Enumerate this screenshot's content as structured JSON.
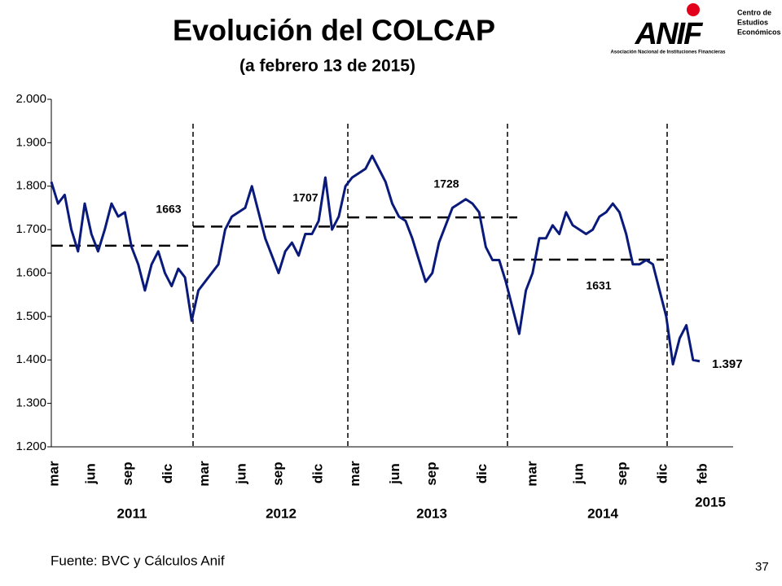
{
  "chart_data": {
    "type": "line",
    "title": "Evolución del COLCAP",
    "subtitle": "(a febrero 13 de 2015)",
    "source": "Fuente: BVC y Cálculos Anif",
    "page_number": "37",
    "logo": {
      "name": "ANIF",
      "unit": [
        "Centro de",
        "Estudios",
        "Económicos"
      ],
      "tagline": "Asociación Nacional de Instituciones Financieras"
    },
    "xlim": [
      0,
      204
    ],
    "xticks": [
      {
        "value": 1,
        "label": "mar"
      },
      {
        "value": 12,
        "label": "jun"
      },
      {
        "value": 23,
        "label": "sep"
      },
      {
        "value": 35,
        "label": "dic"
      },
      {
        "value": 46,
        "label": "mar"
      },
      {
        "value": 57,
        "label": "jun"
      },
      {
        "value": 68,
        "label": "sep"
      },
      {
        "value": 80,
        "label": "dic"
      },
      {
        "value": 91,
        "label": "mar"
      },
      {
        "value": 103,
        "label": "jun"
      },
      {
        "value": 114,
        "label": "sep"
      },
      {
        "value": 129,
        "label": "dic"
      },
      {
        "value": 144,
        "label": "mar"
      },
      {
        "value": 158,
        "label": "jun"
      },
      {
        "value": 171,
        "label": "sep"
      },
      {
        "value": 183,
        "label": "dic"
      },
      {
        "value": 195,
        "label": "feb"
      }
    ],
    "years": [
      "2011",
      "2012",
      "2013",
      "2014",
      "2015"
    ],
    "ylim": [
      1200,
      2000
    ],
    "yticks": [
      {
        "value": 1200,
        "label": "1.200"
      },
      {
        "value": 1300,
        "label": "1.300"
      },
      {
        "value": 1400,
        "label": "1.400"
      },
      {
        "value": 1500,
        "label": "1.500"
      },
      {
        "value": 1600,
        "label": "1.600"
      },
      {
        "value": 1700,
        "label": "1.700"
      },
      {
        "value": 1800,
        "label": "1.800"
      },
      {
        "value": 1900,
        "label": "1.900"
      },
      {
        "value": 2000,
        "label": "2.000"
      }
    ],
    "x": [
      0,
      2,
      4,
      6,
      8,
      10,
      12,
      14,
      16,
      18,
      20,
      22,
      24,
      26,
      28,
      30,
      32,
      34,
      36,
      38,
      40,
      42,
      44,
      46,
      48,
      50,
      52,
      54,
      56,
      58,
      60,
      62,
      64,
      66,
      68,
      70,
      72,
      74,
      76,
      78,
      80,
      82,
      84,
      86,
      88,
      90,
      92,
      94,
      96,
      98,
      100,
      102,
      104,
      106,
      108,
      110,
      112,
      114,
      116,
      118,
      120,
      122,
      124,
      126,
      128,
      130,
      132,
      134,
      136,
      138,
      140,
      142,
      144,
      146,
      148,
      150,
      152,
      154,
      156,
      158,
      160,
      162,
      164,
      166,
      168,
      170,
      172,
      174,
      176,
      178,
      180,
      182,
      184,
      186,
      188,
      190,
      192,
      194
    ],
    "series": [
      {
        "color": "#0a1a7a",
        "values": [
          1810,
          1760,
          1780,
          1700,
          1650,
          1760,
          1690,
          1650,
          1700,
          1760,
          1730,
          1740,
          1660,
          1620,
          1560,
          1620,
          1650,
          1600,
          1570,
          1610,
          1590,
          1490,
          1560,
          1580,
          1600,
          1620,
          1700,
          1730,
          1740,
          1750,
          1800,
          1740,
          1680,
          1640,
          1600,
          1650,
          1670,
          1640,
          1690,
          1690,
          1720,
          1820,
          1700,
          1730,
          1800,
          1820,
          1830,
          1840,
          1870,
          1840,
          1810,
          1760,
          1730,
          1720,
          1680,
          1630,
          1580,
          1600,
          1670,
          1710,
          1750,
          1760,
          1770,
          1760,
          1740,
          1660,
          1630,
          1630,
          1580,
          1520,
          1460,
          1560,
          1600,
          1680,
          1680,
          1710,
          1690,
          1740,
          1710,
          1700,
          1690,
          1700,
          1730,
          1740,
          1760,
          1740,
          1690,
          1620,
          1620,
          1630,
          1620,
          1560,
          1500,
          1390,
          1450,
          1480,
          1400,
          1397
        ]
      }
    ],
    "averages": [
      1663,
      1707,
      1728,
      1631
    ],
    "last_value": {
      "value": 1397,
      "label": "1.397",
      "color": "#ff0000"
    }
  }
}
